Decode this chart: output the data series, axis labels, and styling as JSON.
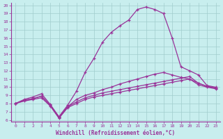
{
  "xlabel": "Windchill (Refroidissement éolien,°C)",
  "bg_color": "#c8eeee",
  "grid_color": "#a0cccc",
  "line_color": "#993399",
  "xlim": [
    -0.5,
    23.5
  ],
  "ylim": [
    5.8,
    20.3
  ],
  "xticks": [
    0,
    1,
    2,
    3,
    4,
    5,
    6,
    7,
    8,
    9,
    10,
    11,
    12,
    13,
    14,
    15,
    16,
    17,
    18,
    19,
    20,
    21,
    22,
    23
  ],
  "yticks": [
    6,
    7,
    8,
    9,
    10,
    11,
    12,
    13,
    14,
    15,
    16,
    17,
    18,
    19,
    20
  ],
  "line1_x": [
    0,
    1,
    2,
    3,
    4,
    5,
    6,
    7,
    8,
    9,
    10,
    11,
    12,
    13,
    14,
    15,
    16,
    17,
    18,
    19,
    20,
    21,
    22,
    23
  ],
  "line1_y": [
    8.0,
    8.3,
    8.5,
    8.7,
    7.7,
    6.2,
    7.5,
    8.0,
    8.5,
    8.8,
    9.0,
    9.2,
    9.4,
    9.6,
    9.8,
    10.0,
    10.2,
    10.4,
    10.6,
    10.8,
    11.0,
    10.3,
    10.0,
    9.8
  ],
  "line2_x": [
    0,
    1,
    2,
    3,
    4,
    5,
    6,
    7,
    8,
    9,
    10,
    11,
    12,
    13,
    14,
    15,
    16,
    17,
    18,
    19,
    20,
    21,
    22,
    23
  ],
  "line2_y": [
    8.0,
    8.4,
    8.6,
    8.9,
    7.8,
    6.3,
    7.6,
    8.2,
    8.7,
    9.0,
    9.3,
    9.5,
    9.7,
    9.9,
    10.1,
    10.3,
    10.5,
    10.7,
    10.9,
    11.1,
    11.3,
    10.5,
    10.1,
    9.9
  ],
  "line3_x": [
    0,
    1,
    2,
    3,
    4,
    5,
    6,
    7,
    8,
    9,
    10,
    11,
    12,
    13,
    14,
    15,
    16,
    17,
    18,
    19,
    20,
    21,
    22,
    23
  ],
  "line3_y": [
    8.0,
    8.4,
    8.6,
    8.9,
    7.8,
    6.3,
    7.6,
    8.5,
    9.0,
    9.3,
    9.7,
    10.0,
    10.4,
    10.7,
    11.0,
    11.3,
    11.6,
    11.8,
    11.5,
    11.2,
    11.0,
    10.5,
    10.1,
    9.9
  ],
  "line4_x": [
    0,
    1,
    2,
    3,
    4,
    5,
    6,
    7,
    8,
    9,
    10,
    11,
    12,
    13,
    14,
    15,
    16,
    17,
    18,
    19,
    20,
    21,
    22,
    23
  ],
  "line4_y": [
    8.0,
    8.5,
    8.8,
    9.2,
    7.9,
    6.4,
    7.8,
    9.5,
    11.8,
    13.5,
    15.5,
    16.7,
    17.5,
    18.2,
    19.5,
    19.8,
    19.5,
    19.0,
    16.0,
    12.5,
    12.0,
    11.5,
    10.2,
    10.0
  ]
}
